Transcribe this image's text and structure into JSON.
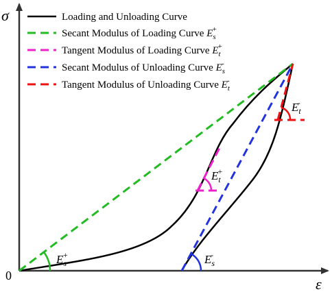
{
  "axes": {
    "y_label": "σ",
    "x_label": "ε",
    "origin": "0"
  },
  "legend": {
    "items": [
      {
        "label": "Loading and Unloading Curve"
      },
      {
        "label": "Secant Modulus of Loading Curve",
        "symbol": "E",
        "sub": "s",
        "sup": "+"
      },
      {
        "label": "Tangent Modulus of Loading Curve",
        "symbol": "E",
        "sub": "t",
        "sup": "+"
      },
      {
        "label": "Secant Modulus of Unloading Curve",
        "symbol": "E",
        "sub": "s",
        "sup": "-"
      },
      {
        "label": "Tangent Modulus of Unloading Curve",
        "symbol": "E",
        "sub": "t",
        "sup": "-"
      }
    ]
  },
  "annotations": [
    {
      "symbol": "E",
      "sub": "s",
      "sup": "+"
    },
    {
      "symbol": "E",
      "sub": "t",
      "sup": "+"
    },
    {
      "symbol": "E",
      "sub": "t",
      "sup": "-"
    },
    {
      "symbol": "E",
      "sub": "s",
      "sup": "-"
    }
  ]
}
